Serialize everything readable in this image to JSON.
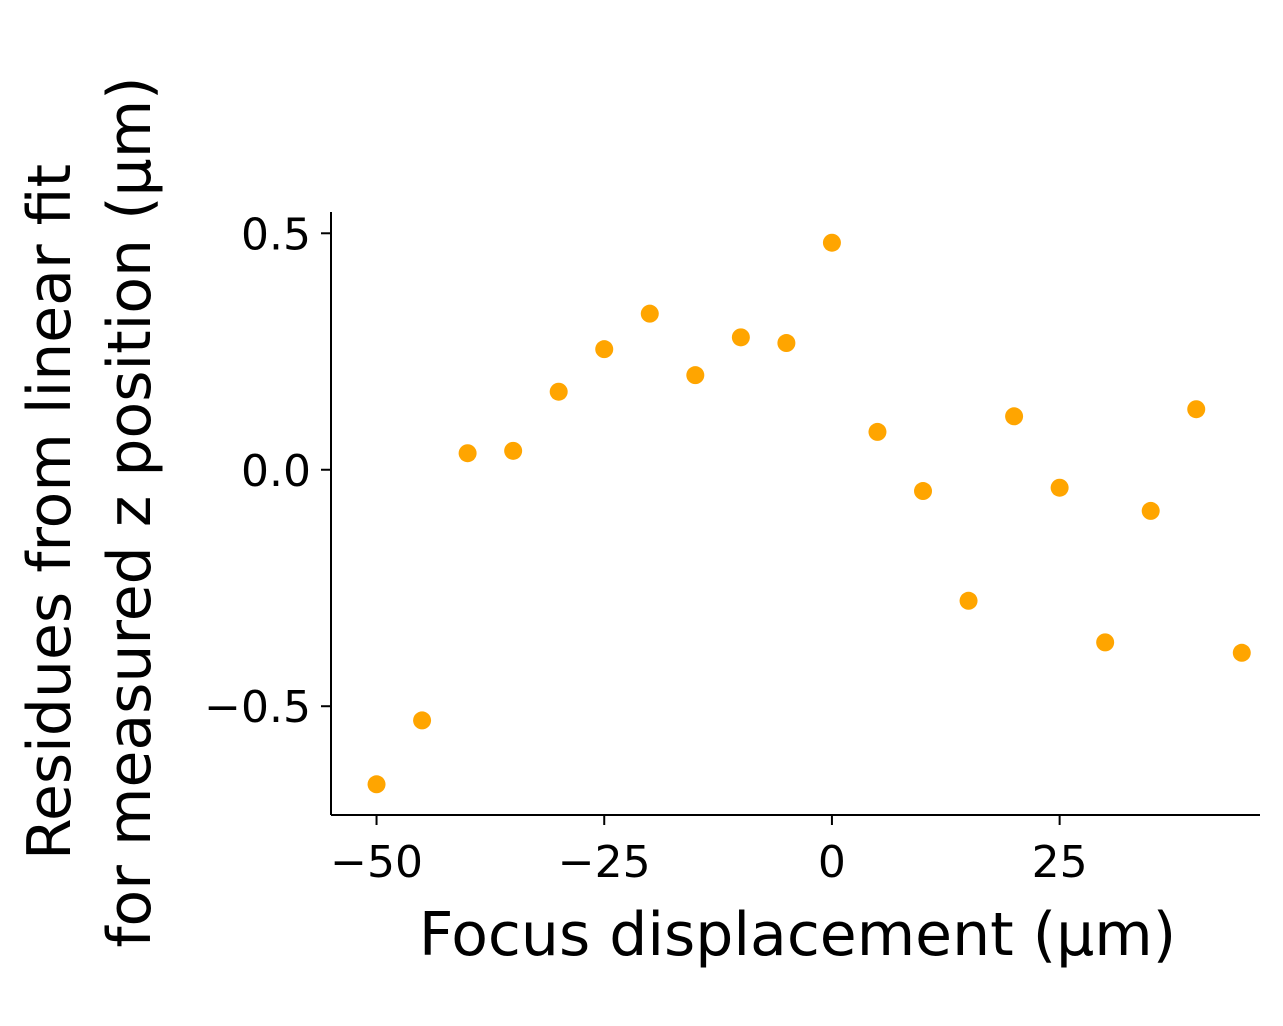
{
  "chart_data": {
    "type": "scatter",
    "title": "",
    "xlabel": "Focus displacement (µm)",
    "ylabel_lines": [
      "Residues from linear fit",
      "for measured z position (µm)"
    ],
    "xlim": [
      -55,
      47
    ],
    "ylim": [
      -0.73,
      0.545
    ],
    "x_ticks": [
      -50,
      -25,
      0,
      25
    ],
    "x_tick_labels": [
      "−50",
      "−25",
      "0",
      "25"
    ],
    "y_ticks": [
      0.5,
      0.0,
      -0.5
    ],
    "y_tick_labels": [
      "0.5",
      "0.0",
      "−0.5"
    ],
    "grid": false,
    "marker_color": "#ffa500",
    "points": [
      {
        "x": -50,
        "y": -0.665
      },
      {
        "x": -45,
        "y": -0.53
      },
      {
        "x": -40,
        "y": 0.035
      },
      {
        "x": -35,
        "y": 0.04
      },
      {
        "x": -30,
        "y": 0.165
      },
      {
        "x": -25,
        "y": 0.255
      },
      {
        "x": -20,
        "y": 0.33
      },
      {
        "x": -15,
        "y": 0.2
      },
      {
        "x": -10,
        "y": 0.28
      },
      {
        "x": -5,
        "y": 0.268
      },
      {
        "x": 0,
        "y": 0.48
      },
      {
        "x": 5,
        "y": 0.08
      },
      {
        "x": 10,
        "y": -0.045
      },
      {
        "x": 15,
        "y": -0.277
      },
      {
        "x": 20,
        "y": 0.113
      },
      {
        "x": 25,
        "y": -0.038
      },
      {
        "x": 30,
        "y": -0.365
      },
      {
        "x": 35,
        "y": -0.087
      },
      {
        "x": 40,
        "y": 0.128
      },
      {
        "x": 45,
        "y": -0.387
      }
    ]
  }
}
